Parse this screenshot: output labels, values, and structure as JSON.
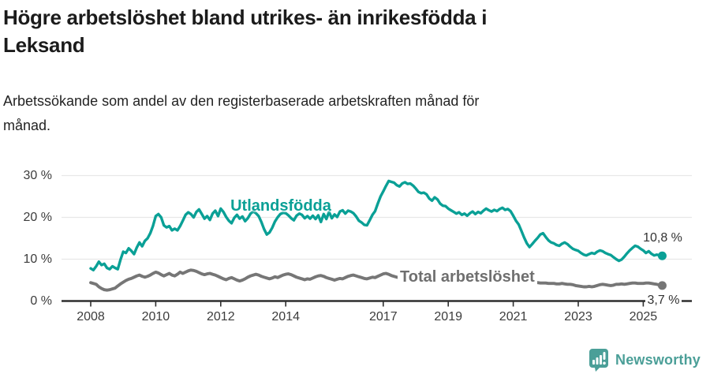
{
  "title": {
    "lines": [
      "Högre arbetslöshet bland utrikes- än inrikesfödda i",
      "Leksand"
    ]
  },
  "subtitle": {
    "lines": [
      "Arbetssökande som andel av den registerbaserade arbetskraften månad för",
      "månad."
    ]
  },
  "colors": {
    "foreign_born_line": "#0aa096",
    "total_line": "#767676",
    "total_label": "#6f6f6f",
    "axis": "#2e2e2e",
    "gridline": "#e8e8e8",
    "tick_text": "#3c3c3c",
    "value_text": "#333333",
    "brand_teal": "#4b9f98"
  },
  "chart_data": {
    "type": "line",
    "x_start_year": 2008,
    "x_step_months": 1,
    "ylim": [
      0,
      32
    ],
    "grid": "horizontal",
    "y_axis": {
      "ticks": [
        "0 %",
        "10 %",
        "20 %",
        "30 %"
      ],
      "tick_values": [
        0,
        10,
        20,
        30
      ]
    },
    "x_axis": {
      "tick_years": [
        2008,
        2010,
        2012,
        2014,
        2017,
        2019,
        2021,
        2023,
        2025
      ]
    },
    "series": [
      {
        "name": "Utlandsfödda",
        "color": "#0aa096",
        "end_label": "10,8 %",
        "end_value": 10.8,
        "values": [
          7.8,
          7.4,
          8.3,
          9.4,
          8.6,
          8.9,
          7.9,
          7.6,
          8.3,
          7.9,
          7.6,
          9.9,
          11.8,
          11.5,
          12.6,
          12.0,
          11.2,
          12.8,
          14.0,
          13.1,
          14.4,
          15.0,
          16.2,
          18.0,
          20.3,
          20.8,
          20.0,
          18.1,
          17.6,
          17.9,
          16.9,
          17.3,
          16.9,
          17.9,
          19.2,
          20.6,
          21.2,
          20.8,
          20.0,
          21.3,
          21.9,
          20.8,
          19.7,
          20.3,
          19.4,
          20.9,
          21.6,
          20.3,
          22.1,
          21.3,
          20.1,
          19.2,
          18.6,
          19.9,
          20.6,
          19.7,
          20.2,
          19.1,
          19.8,
          20.9,
          21.4,
          21.0,
          20.3,
          18.9,
          17.2,
          15.9,
          16.4,
          17.5,
          19.0,
          20.0,
          20.8,
          21.1,
          21.0,
          20.5,
          19.8,
          19.3,
          20.4,
          20.9,
          20.6,
          19.8,
          20.3,
          19.7,
          20.4,
          19.6,
          20.5,
          18.9,
          20.8,
          19.6,
          21.3,
          19.8,
          20.7,
          20.1,
          21.4,
          21.7,
          20.9,
          21.6,
          21.4,
          21.0,
          20.2,
          19.2,
          18.8,
          18.2,
          18.1,
          19.3,
          20.6,
          21.5,
          23.3,
          25.0,
          26.2,
          27.5,
          28.7,
          28.5,
          28.3,
          27.7,
          27.4,
          28.1,
          28.4,
          28.0,
          28.1,
          27.6,
          26.9,
          26.1,
          25.8,
          25.9,
          25.5,
          24.5,
          24.0,
          24.8,
          24.3,
          23.3,
          22.8,
          22.7,
          22.1,
          21.7,
          21.3,
          20.9,
          21.2,
          20.6,
          20.9,
          20.4,
          21.0,
          21.4,
          20.8,
          21.3,
          21.0,
          21.6,
          22.1,
          21.7,
          21.4,
          21.8,
          21.5,
          22.0,
          22.3,
          21.8,
          22.0,
          21.5,
          20.4,
          19.2,
          18.3,
          16.8,
          15.2,
          13.8,
          12.9,
          13.6,
          14.4,
          15.1,
          15.9,
          16.2,
          15.3,
          14.5,
          14.0,
          13.8,
          13.4,
          13.2,
          13.7,
          14.0,
          13.6,
          13.0,
          12.5,
          12.2,
          12.0,
          11.5,
          11.1,
          10.9,
          11.2,
          11.5,
          11.3,
          11.8,
          12.1,
          11.9,
          11.5,
          11.2,
          11.0,
          10.5,
          10.0,
          9.6,
          9.9,
          10.6,
          11.4,
          12.1,
          12.7,
          13.2,
          13.0,
          12.5,
          12.1,
          11.5,
          11.9,
          11.3,
          10.9,
          11.1,
          10.9,
          10.8
        ]
      },
      {
        "name": "Total arbetslöshet",
        "color": "#767676",
        "end_label": "3,7 %",
        "end_value": 3.7,
        "values": [
          4.4,
          4.2,
          4.0,
          3.4,
          3.0,
          2.7,
          2.6,
          2.7,
          2.9,
          3.1,
          3.6,
          4.1,
          4.5,
          4.9,
          5.2,
          5.4,
          5.7,
          6.0,
          6.2,
          5.9,
          5.7,
          5.9,
          6.2,
          6.6,
          6.9,
          6.7,
          6.3,
          6.0,
          6.3,
          6.6,
          6.2,
          6.0,
          6.4,
          6.9,
          6.6,
          6.9,
          7.2,
          7.4,
          7.3,
          7.1,
          6.8,
          6.5,
          6.3,
          6.5,
          6.6,
          6.4,
          6.2,
          5.9,
          5.6,
          5.3,
          5.1,
          5.4,
          5.6,
          5.3,
          5.0,
          4.8,
          5.0,
          5.3,
          5.7,
          6.0,
          6.2,
          6.4,
          6.2,
          5.9,
          5.7,
          5.5,
          5.3,
          5.5,
          5.8,
          5.6,
          5.9,
          6.2,
          6.4,
          6.5,
          6.3,
          6.0,
          5.7,
          5.5,
          5.3,
          5.1,
          5.3,
          5.2,
          5.5,
          5.8,
          6.0,
          6.1,
          5.9,
          5.6,
          5.4,
          5.2,
          5.0,
          5.2,
          5.4,
          5.3,
          5.6,
          5.9,
          6.1,
          6.2,
          6.0,
          5.8,
          5.6,
          5.4,
          5.3,
          5.5,
          5.7,
          5.6,
          5.9,
          6.2,
          6.5,
          6.6,
          6.4,
          6.1,
          5.9,
          5.7,
          5.6,
          5.7,
          5.8,
          5.6,
          5.7,
          5.9,
          6.0,
          5.9,
          5.7,
          5.5,
          5.3,
          5.1,
          5.0,
          5.1,
          5.3,
          5.2,
          5.3,
          5.4,
          5.5,
          5.4,
          5.2,
          5.0,
          4.9,
          4.8,
          4.7,
          4.8,
          5.0,
          5.1,
          5.3,
          5.5,
          5.7,
          5.9,
          6.2,
          6.4,
          6.5,
          6.4,
          6.2,
          6.1,
          6.0,
          5.9,
          5.8,
          5.7,
          5.6,
          5.5,
          5.3,
          5.1,
          4.9,
          4.7,
          4.6,
          4.5,
          4.4,
          4.4,
          4.3,
          4.3,
          4.3,
          4.2,
          4.2,
          4.2,
          4.1,
          4.1,
          4.2,
          4.1,
          4.0,
          4.0,
          3.9,
          3.7,
          3.6,
          3.5,
          3.4,
          3.4,
          3.5,
          3.4,
          3.5,
          3.7,
          3.9,
          4.0,
          3.9,
          3.8,
          3.7,
          3.8,
          4.0,
          4.0,
          4.1,
          4.0,
          4.1,
          4.2,
          4.3,
          4.3,
          4.2,
          4.2,
          4.2,
          4.3,
          4.3,
          4.2,
          4.1,
          4.0,
          3.8,
          3.7
        ]
      }
    ]
  },
  "footer": {
    "brand": "Newsworthy"
  }
}
